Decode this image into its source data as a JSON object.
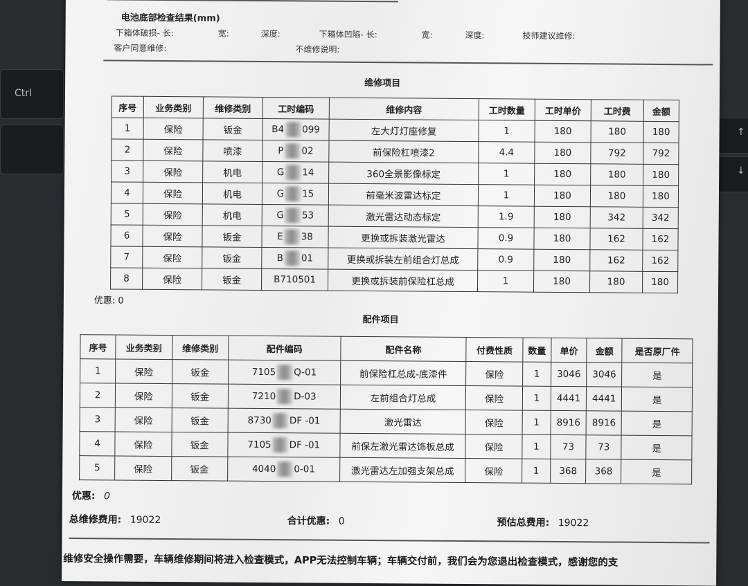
{
  "keyboard": {
    "ctrl_label": "Ctrl",
    "up_arrow": "↑",
    "down_arrow": "↓"
  },
  "battery": {
    "title": "电池底部检查结果(mm)",
    "fields_row1": [
      "下箱体破损- 长:",
      "宽:",
      "深度:",
      "下箱体凹陷- 长:",
      "宽:",
      "深度:",
      "技师建议维修:"
    ],
    "fields_row2": [
      "客户同意维修:",
      "不维修说明:"
    ]
  },
  "labor": {
    "title": "维修项目",
    "headers": [
      "序号",
      "业务类别",
      "维修类别",
      "工时编码",
      "维修内容",
      "工时数量",
      "工时单价",
      "工时费",
      "金额"
    ],
    "rows": [
      {
        "no": "1",
        "biz": "保险",
        "type": "钣金",
        "code_a": "B4",
        "code_b": "099",
        "content": "左大灯灯座修复",
        "qty": "1",
        "unit": "180",
        "fee": "180",
        "amount": "180"
      },
      {
        "no": "2",
        "biz": "保险",
        "type": "喷漆",
        "code_a": "P",
        "code_b": "02",
        "content": "前保险杠喷漆2",
        "qty": "4.4",
        "unit": "180",
        "fee": "792",
        "amount": "792"
      },
      {
        "no": "3",
        "biz": "保险",
        "type": "机电",
        "code_a": "G",
        "code_b": "14",
        "content": "360全景影像标定",
        "qty": "1",
        "unit": "180",
        "fee": "180",
        "amount": "180"
      },
      {
        "no": "4",
        "biz": "保险",
        "type": "机电",
        "code_a": "G",
        "code_b": "15",
        "content": "前毫米波雷达标定",
        "qty": "1",
        "unit": "180",
        "fee": "180",
        "amount": "180"
      },
      {
        "no": "5",
        "biz": "保险",
        "type": "机电",
        "code_a": "G",
        "code_b": "53",
        "content": "激光雷达动态标定",
        "qty": "1.9",
        "unit": "180",
        "fee": "342",
        "amount": "342"
      },
      {
        "no": "6",
        "biz": "保险",
        "type": "钣金",
        "code_a": "E",
        "code_b": "38",
        "content": "更换或拆装激光雷达",
        "qty": "0.9",
        "unit": "180",
        "fee": "162",
        "amount": "162"
      },
      {
        "no": "7",
        "biz": "保险",
        "type": "钣金",
        "code_a": "B",
        "code_b": "01",
        "content": "更换或拆装左前组合灯总成",
        "qty": "0.9",
        "unit": "180",
        "fee": "162",
        "amount": "162"
      },
      {
        "no": "8",
        "biz": "保险",
        "type": "钣金",
        "code_a": "B710501",
        "code_b": "",
        "content": "更换或拆装前保险杠总成",
        "qty": "1",
        "unit": "180",
        "fee": "180",
        "amount": "180"
      }
    ],
    "discount": "优惠:  0"
  },
  "parts": {
    "title": "配件项目",
    "headers": [
      "序号",
      "业务类别",
      "维修类别",
      "配件编码",
      "配件名称",
      "付费性质",
      "数量",
      "单价",
      "金额",
      "是否原厂件"
    ],
    "rows": [
      {
        "no": "1",
        "biz": "保险",
        "type": "钣金",
        "code_a": "7105",
        "code_b": "Q-01",
        "name": "前保险杠总成-底漆件",
        "pay": "保险",
        "qty": "1",
        "price": "3046",
        "amount": "3046",
        "oem": "是"
      },
      {
        "no": "2",
        "biz": "保险",
        "type": "钣金",
        "code_a": "7210",
        "code_b": "D-03",
        "name": "左前组合灯总成",
        "pay": "保险",
        "qty": "1",
        "price": "4441",
        "amount": "4441",
        "oem": "是"
      },
      {
        "no": "3",
        "biz": "保险",
        "type": "钣金",
        "code_a": "8730",
        "code_b": "DF -01",
        "name": "激光雷达",
        "pay": "保险",
        "qty": "1",
        "price": "8916",
        "amount": "8916",
        "oem": "是"
      },
      {
        "no": "4",
        "biz": "保险",
        "type": "钣金",
        "code_a": "7105",
        "code_b": "DF -01",
        "name": "前保左激光雷达饰板总成",
        "pay": "保险",
        "qty": "1",
        "price": "73",
        "amount": "73",
        "oem": "是"
      },
      {
        "no": "5",
        "biz": "保险",
        "type": "钣金",
        "code_a": "4040",
        "code_b": "0-01",
        "name": "激光雷达左加强支架总成",
        "pay": "保险",
        "qty": "1",
        "price": "368",
        "amount": "368",
        "oem": "是"
      }
    ],
    "discount_label": "优惠:",
    "discount_value": "0"
  },
  "summary": {
    "total_label": "总维修费用:",
    "total_value": "19022",
    "discount_label": "合计优惠:",
    "discount_value": "0",
    "estimate_label": "预估总费用:",
    "estimate_value": "19022"
  },
  "notice": "维修安全操作需要，车辆维修期间将进入检查模式，APP无法控制车辆；车辆交付前，我们会为您退出检查模式，感谢您的支"
}
